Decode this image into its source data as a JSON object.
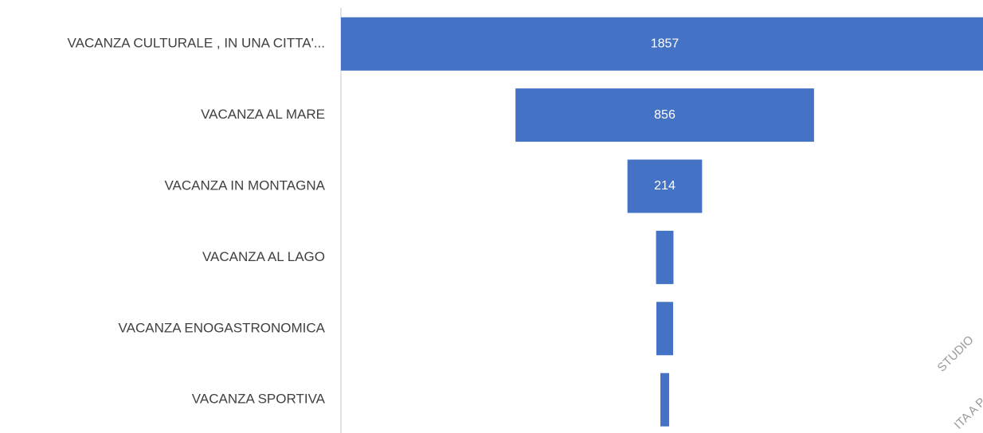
{
  "chart_data": {
    "type": "funnel",
    "categories": [
      "VACANZA CULTURALE , IN UNA CITTA'...",
      "VACANZA AL MARE",
      "VACANZA IN MONTAGNA",
      "VACANZA AL LAGO",
      "VACANZA ENOGASTRONOMICA",
      "VACANZA SPORTIVA"
    ],
    "values": [
      1857,
      856,
      214,
      50,
      48,
      25
    ],
    "color": "#4472c4",
    "watermark": [
      "STUDIO",
      "ITA A P"
    ]
  }
}
